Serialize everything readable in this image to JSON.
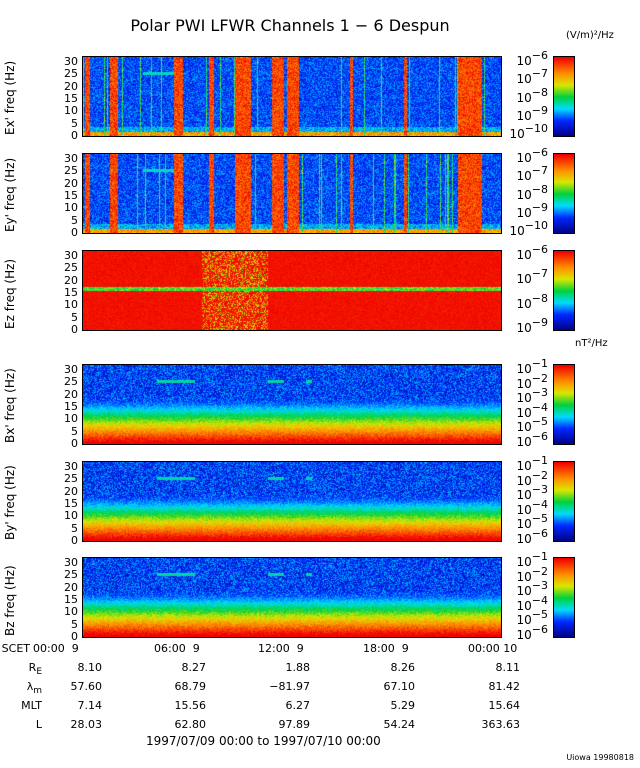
{
  "title": "Polar PWI LFWR Channels 1 − 6 Despun",
  "credit": "Uiowa 19980818",
  "chart_data": {
    "type": "heatmap",
    "title": "Polar PWI LFWR Channels 1 − 6 Despun",
    "x_range_hours": [
      0,
      24
    ],
    "y_ticks": [
      "0",
      "5",
      "10",
      "15",
      "20",
      "25",
      "30"
    ],
    "ylim": [
      0,
      32
    ],
    "panels": [
      {
        "ylabel": "Ex' freq (Hz)",
        "kind": "E",
        "unit": "(V/m)²/Hz",
        "cb_ticks": [
          {
            "b": "10",
            "e": "−6"
          },
          {
            "b": "10",
            "e": "−7"
          },
          {
            "b": "10",
            "e": "−8"
          },
          {
            "b": "10",
            "e": "−9"
          },
          {
            "b": "10",
            "e": "−10"
          }
        ],
        "bursts_hours": [
          [
            0.1,
            0.4
          ],
          [
            1.5,
            2.0
          ],
          [
            5.2,
            5.7
          ],
          [
            7.2,
            7.5
          ],
          [
            8.7,
            9.6
          ],
          [
            10.8,
            11.5
          ],
          [
            11.7,
            12.4
          ],
          [
            15.3,
            15.5
          ],
          [
            18.4,
            18.6
          ],
          [
            21.5,
            22.9
          ]
        ],
        "line_25hz_hours": [
          [
            3.4,
            5.2
          ]
        ]
      },
      {
        "ylabel": "Ey' freq (Hz)",
        "kind": "E",
        "unit": "",
        "cb_ticks": [
          {
            "b": "10",
            "e": "−6"
          },
          {
            "b": "10",
            "e": "−7"
          },
          {
            "b": "10",
            "e": "−8"
          },
          {
            "b": "10",
            "e": "−9"
          },
          {
            "b": "10",
            "e": "−10"
          }
        ],
        "bursts_hours": [
          [
            0.1,
            0.4
          ],
          [
            1.5,
            2.0
          ],
          [
            5.2,
            5.7
          ],
          [
            7.2,
            7.5
          ],
          [
            8.7,
            9.6
          ],
          [
            10.8,
            11.5
          ],
          [
            11.7,
            12.4
          ],
          [
            15.3,
            15.5
          ],
          [
            18.4,
            18.6
          ],
          [
            21.5,
            22.9
          ]
        ],
        "line_25hz_hours": [
          [
            3.4,
            5.2
          ]
        ]
      },
      {
        "ylabel": "Ez freq (Hz)",
        "kind": "Ez",
        "unit": "",
        "cb_ticks": [
          {
            "b": "10",
            "e": "−6"
          },
          {
            "b": "10",
            "e": "−7"
          },
          {
            "b": "10",
            "e": "−8"
          },
          {
            "b": "10",
            "e": "−9"
          }
        ],
        "bursts_hours": [
          [
            6.8,
            10.6
          ]
        ],
        "line_25hz_hours": []
      },
      {
        "ylabel": "Bx' freq (Hz)",
        "kind": "B",
        "unit": "nT²/Hz",
        "cb_ticks": [
          {
            "b": "10",
            "e": "−1"
          },
          {
            "b": "10",
            "e": "−2"
          },
          {
            "b": "10",
            "e": "−3"
          },
          {
            "b": "10",
            "e": "−4"
          },
          {
            "b": "10",
            "e": "−5"
          },
          {
            "b": "10",
            "e": "−6"
          }
        ],
        "bursts_hours": [],
        "line_25hz_hours": [
          [
            4.2,
            6.4
          ],
          [
            10.6,
            11.5
          ],
          [
            12.8,
            13.1
          ]
        ]
      },
      {
        "ylabel": "By' freq (Hz)",
        "kind": "B",
        "unit": "",
        "cb_ticks": [
          {
            "b": "10",
            "e": "−1"
          },
          {
            "b": "10",
            "e": "−2"
          },
          {
            "b": "10",
            "e": "−3"
          },
          {
            "b": "10",
            "e": "−4"
          },
          {
            "b": "10",
            "e": "−5"
          },
          {
            "b": "10",
            "e": "−6"
          }
        ],
        "bursts_hours": [],
        "line_25hz_hours": [
          [
            4.2,
            6.4
          ],
          [
            10.6,
            11.5
          ],
          [
            12.8,
            13.1
          ]
        ]
      },
      {
        "ylabel": "Bz freq (Hz)",
        "kind": "B",
        "unit": "",
        "cb_ticks": [
          {
            "b": "10",
            "e": "−1"
          },
          {
            "b": "10",
            "e": "−2"
          },
          {
            "b": "10",
            "e": "−3"
          },
          {
            "b": "10",
            "e": "−4"
          },
          {
            "b": "10",
            "e": "−5"
          },
          {
            "b": "10",
            "e": "−6"
          }
        ],
        "bursts_hours": [],
        "line_25hz_hours": [
          [
            4.2,
            6.4
          ],
          [
            10.6,
            11.5
          ],
          [
            12.8,
            13.1
          ]
        ]
      }
    ]
  },
  "ephemeris": {
    "rows": [
      {
        "label": "SCET",
        "values": [
          "00:00  9",
          "06:00  9",
          "12:00  9",
          "18:00  9",
          "00:00 10"
        ]
      },
      {
        "label": "R",
        "sub": "E",
        "values": [
          "8.10",
          "8.27",
          "1.88",
          "8.26",
          "8.11"
        ]
      },
      {
        "label": "λ",
        "sub": "m",
        "values": [
          "57.60",
          "68.79",
          "−81.97",
          "67.10",
          "81.42"
        ]
      },
      {
        "label": "MLT",
        "values": [
          "7.14",
          "15.56",
          "6.27",
          "5.29",
          "15.64"
        ]
      },
      {
        "label": "L",
        "values": [
          "28.03",
          "62.80",
          "97.89",
          "54.24",
          "363.63"
        ]
      }
    ],
    "range": "1997/07/09 00:00 to 1997/07/10 00:00"
  }
}
